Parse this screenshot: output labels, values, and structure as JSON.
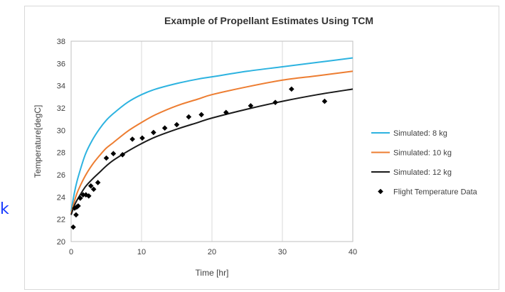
{
  "page": {
    "side_glyph": "k"
  },
  "chart_data": {
    "type": "line",
    "title": "Example of Propellant Estimates Using TCM",
    "xlabel": "Time [hr]",
    "ylabel": "Temperature[degC]",
    "xlim": [
      0,
      40
    ],
    "ylim": [
      20,
      38
    ],
    "x_ticks": [
      0,
      10,
      20,
      30,
      40
    ],
    "y_ticks": [
      20,
      22,
      24,
      26,
      28,
      30,
      32,
      34,
      36,
      38
    ],
    "grid": "vertical",
    "legend_position": "right",
    "series": [
      {
        "name": "Simulated: 8 kg",
        "type": "line",
        "color": "#2db3e0",
        "x": [
          0,
          0.5,
          1,
          2,
          3,
          4,
          5,
          6,
          8,
          10,
          12,
          15,
          18,
          20,
          25,
          30,
          35,
          40
        ],
        "y": [
          22.7,
          24.5,
          25.8,
          27.8,
          29.1,
          30.1,
          30.9,
          31.5,
          32.5,
          33.2,
          33.7,
          34.2,
          34.6,
          34.8,
          35.3,
          35.7,
          36.1,
          36.5
        ]
      },
      {
        "name": "Simulated: 10 kg",
        "type": "line",
        "color": "#ed7d31",
        "x": [
          0,
          0.5,
          1,
          2,
          3,
          4,
          5,
          6,
          8,
          10,
          12,
          15,
          18,
          20,
          25,
          30,
          35,
          40
        ],
        "y": [
          22.5,
          23.7,
          24.6,
          25.9,
          26.9,
          27.7,
          28.4,
          28.9,
          29.9,
          30.7,
          31.4,
          32.2,
          32.8,
          33.2,
          33.9,
          34.5,
          34.9,
          35.3
        ]
      },
      {
        "name": "Simulated: 12 kg",
        "type": "line",
        "color": "#1a1a1a",
        "x": [
          0,
          0.5,
          1,
          2,
          3,
          4,
          5,
          6,
          8,
          10,
          12,
          15,
          18,
          20,
          25,
          30,
          35,
          40
        ],
        "y": [
          22.4,
          23.3,
          23.9,
          24.9,
          25.6,
          26.2,
          26.8,
          27.3,
          28.1,
          28.8,
          29.4,
          30.1,
          30.7,
          31.1,
          31.9,
          32.6,
          33.2,
          33.7
        ]
      },
      {
        "name": "Flight Temperature Data",
        "type": "scatter",
        "color": "#000000",
        "x": [
          0.3,
          0.5,
          0.7,
          0.8,
          1.0,
          1.3,
          1.7,
          2.1,
          2.5,
          2.8,
          3.2,
          3.8,
          5.0,
          6.0,
          7.3,
          8.7,
          10.1,
          11.7,
          13.3,
          15.0,
          16.7,
          18.5,
          22.0,
          25.5,
          29.0,
          31.3,
          36.0
        ],
        "y": [
          21.3,
          23.0,
          22.4,
          23.1,
          23.2,
          23.9,
          24.2,
          24.2,
          24.1,
          25.0,
          24.7,
          25.3,
          27.5,
          27.9,
          27.8,
          29.2,
          29.3,
          29.8,
          30.2,
          30.5,
          31.2,
          31.4,
          31.6,
          32.2,
          32.5,
          33.7,
          32.6
        ]
      }
    ]
  }
}
